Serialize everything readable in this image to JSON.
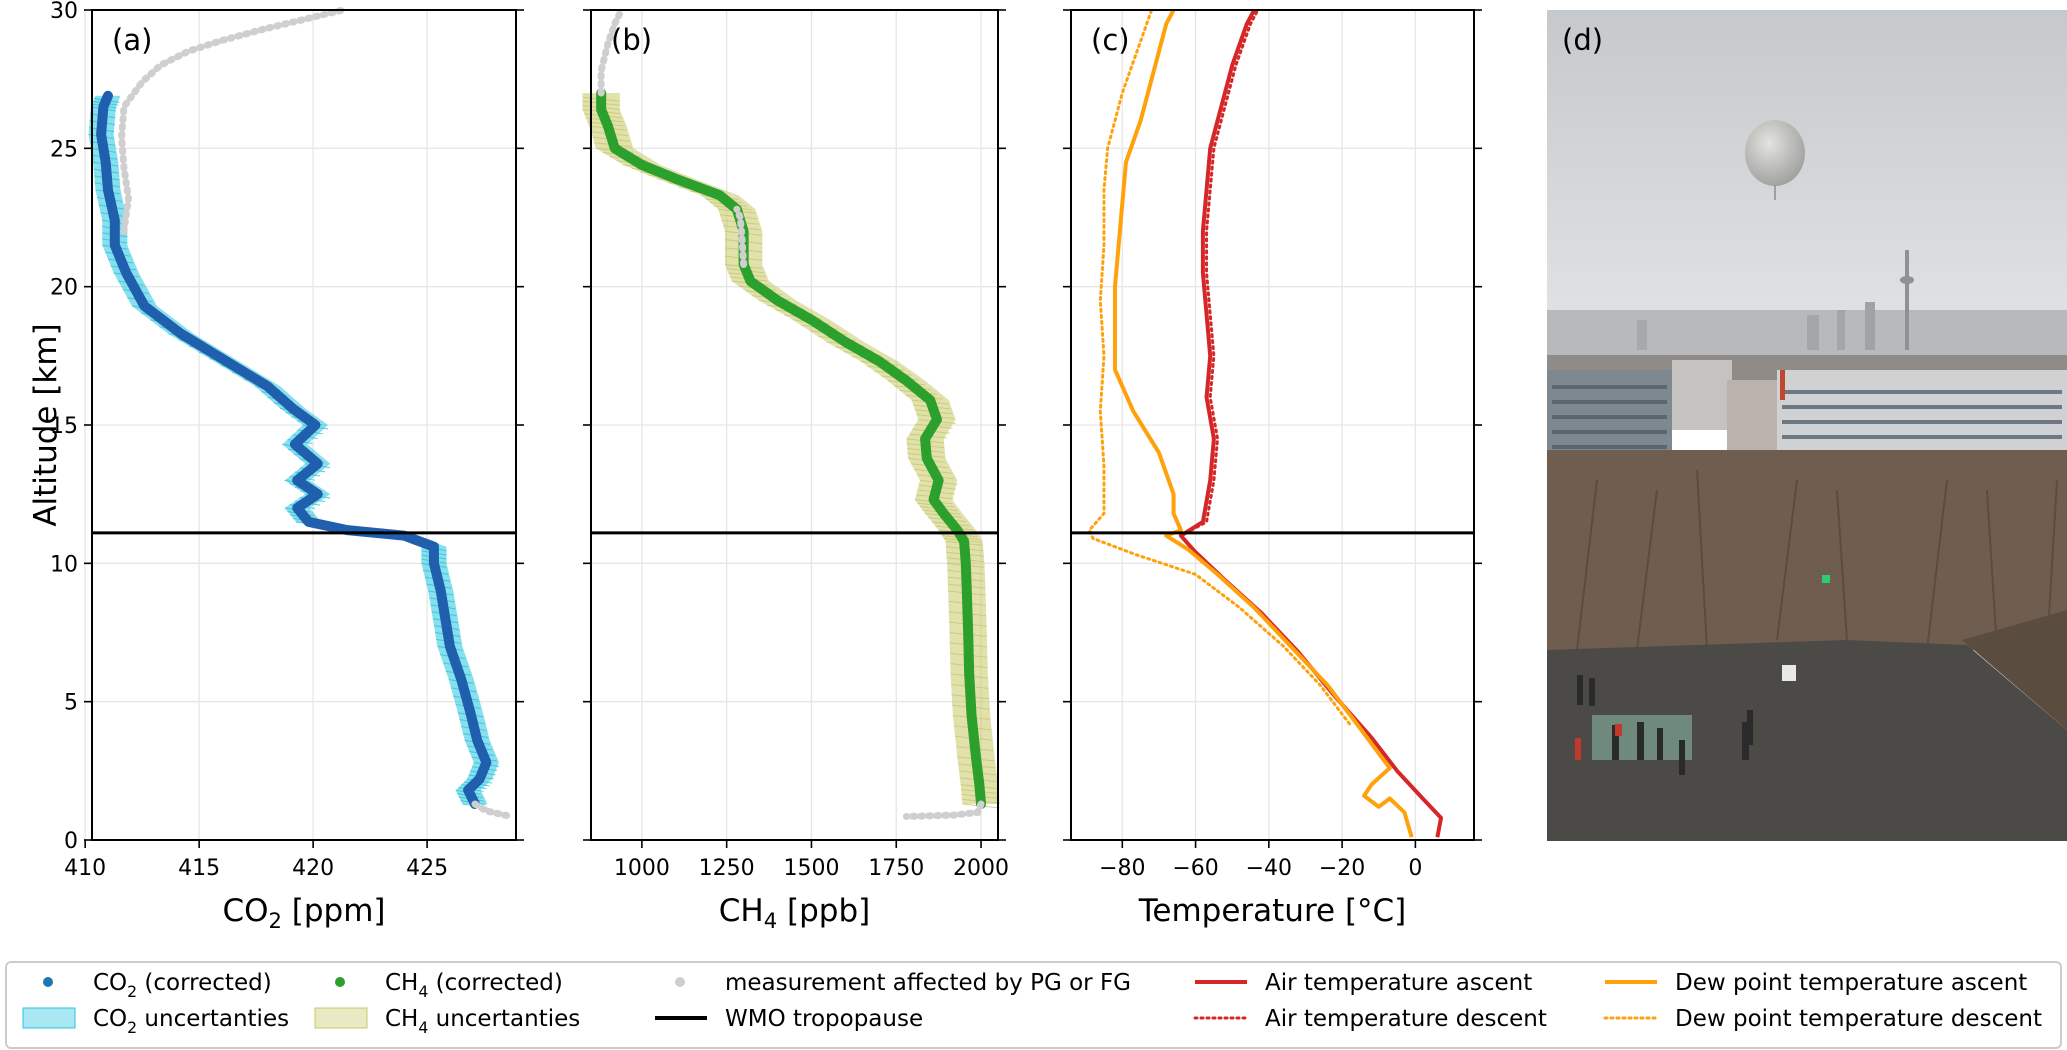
{
  "colors": {
    "co2": "#1f5fad",
    "co2_band": "#27c4df",
    "ch4": "#2ca02c",
    "ch4_band": "#c8c86a",
    "grey": "#cfcfcf",
    "air": "#d62728",
    "dew": "#ffa10a",
    "tropopause": "#000000",
    "grid": "#e6e6e6"
  },
  "chart_data": [
    {
      "panel_label": "(a)",
      "type": "line",
      "xlabel_main": "CO",
      "xlabel_sub": "2",
      "xlabel_tail": " [ppm]",
      "ylabel": "Altitude [km]",
      "xlim": [
        410.3,
        428.9
      ],
      "ylim": [
        0,
        30
      ],
      "xticks": [
        410,
        415,
        420,
        425
      ],
      "yticks": [
        0,
        5,
        10,
        15,
        20,
        25,
        30
      ],
      "tropopause_km": 11.1,
      "series": [
        {
          "name": "CO2 (corrected)",
          "role": "profile",
          "points": [
            [
              427.1,
              1.3
            ],
            [
              426.8,
              1.8
            ],
            [
              427.3,
              2.2
            ],
            [
              427.6,
              2.8
            ],
            [
              427.2,
              3.6
            ],
            [
              426.9,
              4.6
            ],
            [
              426.5,
              5.8
            ],
            [
              426.0,
              7.0
            ],
            [
              425.8,
              8.0
            ],
            [
              425.6,
              9.0
            ],
            [
              425.3,
              10.0
            ],
            [
              425.3,
              10.6
            ],
            [
              424.0,
              11.0
            ],
            [
              421.5,
              11.2
            ],
            [
              419.8,
              11.5
            ],
            [
              419.3,
              12.0
            ],
            [
              420.2,
              12.5
            ],
            [
              419.3,
              13.0
            ],
            [
              420.2,
              13.6
            ],
            [
              419.2,
              14.3
            ],
            [
              420.1,
              15.0
            ],
            [
              419.1,
              15.6
            ],
            [
              418.0,
              16.4
            ],
            [
              416.0,
              17.4
            ],
            [
              414.2,
              18.3
            ],
            [
              412.6,
              19.3
            ],
            [
              411.8,
              20.5
            ],
            [
              411.3,
              21.5
            ],
            [
              411.3,
              22.4
            ],
            [
              411.0,
              23.5
            ],
            [
              410.9,
              24.5
            ],
            [
              410.7,
              25.5
            ],
            [
              410.8,
              26.5
            ],
            [
              411.0,
              26.9
            ]
          ]
        },
        {
          "name": "CO2 uncertainties",
          "role": "band",
          "half_width": 0.55
        },
        {
          "name": "measurement affected by PG or FG",
          "role": "grey",
          "points": [
            [
              427.1,
              1.3
            ],
            [
              427.6,
              1.05
            ],
            [
              428.4,
              0.9
            ],
            [
              428.7,
              0.85
            ]
          ]
        },
        {
          "name": "measurement affected by PG or FG",
          "role": "grey",
          "points": [
            [
              411.7,
              22.0
            ],
            [
              411.9,
              23.2
            ],
            [
              411.7,
              24.3
            ],
            [
              411.6,
              25.4
            ],
            [
              411.7,
              26.5
            ],
            [
              412.5,
              27.4
            ],
            [
              413.3,
              28.0
            ],
            [
              414.5,
              28.5
            ],
            [
              416.0,
              28.9
            ],
            [
              417.8,
              29.3
            ],
            [
              419.8,
              29.7
            ],
            [
              421.3,
              30.0
            ]
          ]
        }
      ]
    },
    {
      "panel_label": "(b)",
      "type": "line",
      "xlabel_main": "CH",
      "xlabel_sub": "4",
      "xlabel_tail": " [ppb]",
      "xlim": [
        850,
        2050
      ],
      "ylim": [
        0,
        30
      ],
      "xticks": [
        1000,
        1250,
        1500,
        1750,
        2000
      ],
      "yticks": [
        0,
        5,
        10,
        15,
        20,
        25,
        30
      ],
      "tropopause_km": 11.1,
      "series": [
        {
          "name": "CH4 (corrected)",
          "role": "profile",
          "points": [
            [
              2000,
              1.3
            ],
            [
              1995,
              2.0
            ],
            [
              1985,
              3.0
            ],
            [
              1972,
              4.5
            ],
            [
              1965,
              6.0
            ],
            [
              1962,
              7.5
            ],
            [
              1958,
              9.0
            ],
            [
              1955,
              10.0
            ],
            [
              1950,
              10.8
            ],
            [
              1930,
              11.2
            ],
            [
              1890,
              11.8
            ],
            [
              1860,
              12.3
            ],
            [
              1875,
              13.0
            ],
            [
              1840,
              13.8
            ],
            [
              1835,
              14.5
            ],
            [
              1870,
              15.2
            ],
            [
              1850,
              15.9
            ],
            [
              1780,
              16.6
            ],
            [
              1700,
              17.3
            ],
            [
              1600,
              18.0
            ],
            [
              1500,
              18.8
            ],
            [
              1400,
              19.5
            ],
            [
              1320,
              20.2
            ],
            [
              1300,
              20.8
            ],
            [
              1300,
              22.0
            ],
            [
              1280,
              22.8
            ],
            [
              1230,
              23.3
            ],
            [
              1100,
              23.9
            ],
            [
              1000,
              24.4
            ],
            [
              920,
              25.0
            ],
            [
              900,
              25.8
            ],
            [
              880,
              26.4
            ],
            [
              880,
              27.0
            ]
          ]
        },
        {
          "name": "CH4 uncertainties",
          "role": "band",
          "half_width": 55
        },
        {
          "name": "measurement affected by PG or FG",
          "role": "grey",
          "points": [
            [
              2000,
              1.3
            ],
            [
              1990,
              1.0
            ],
            [
              1920,
              0.9
            ],
            [
              1780,
              0.85
            ]
          ]
        },
        {
          "name": "measurement affected by PG or FG",
          "role": "grey",
          "points": [
            [
              1300,
              20.8
            ],
            [
              1295,
              21.8
            ],
            [
              1290,
              22.5
            ],
            [
              1280,
              22.8
            ]
          ]
        },
        {
          "name": "measurement affected by PG or FG",
          "role": "grey",
          "points": [
            [
              880,
              27.0
            ],
            [
              880,
              27.8
            ],
            [
              900,
              28.8
            ],
            [
              920,
              29.5
            ],
            [
              940,
              30.0
            ]
          ]
        }
      ]
    },
    {
      "panel_label": "(c)",
      "type": "line",
      "xlabel": "Temperature [°C]",
      "xlim": [
        -94,
        16
      ],
      "ylim": [
        0,
        30
      ],
      "xticks": [
        -80,
        -60,
        -40,
        -20,
        0
      ],
      "yticks": [
        0,
        5,
        10,
        15,
        20,
        25,
        30
      ],
      "tropopause_km": 11.1,
      "series": [
        {
          "name": "Air temperature ascent",
          "role": "air",
          "dash": "solid",
          "points": [
            [
              6,
              0.1
            ],
            [
              7,
              0.8
            ],
            [
              2,
              1.5
            ],
            [
              -5,
              2.5
            ],
            [
              -12,
              3.7
            ],
            [
              -22,
              5.2
            ],
            [
              -32,
              6.8
            ],
            [
              -42,
              8.2
            ],
            [
              -52,
              9.4
            ],
            [
              -60,
              10.4
            ],
            [
              -64,
              11.0
            ],
            [
              -58,
              11.5
            ],
            [
              -56,
              13.0
            ],
            [
              -55,
              14.5
            ],
            [
              -57,
              16.0
            ],
            [
              -56,
              17.5
            ],
            [
              -57,
              19.0
            ],
            [
              -58,
              20.5
            ],
            [
              -58,
              22.0
            ],
            [
              -57,
              23.5
            ],
            [
              -56,
              25.0
            ],
            [
              -53,
              26.5
            ],
            [
              -50,
              28.0
            ],
            [
              -46,
              29.5
            ],
            [
              -44,
              30.0
            ]
          ]
        },
        {
          "name": "Air temperature descent",
          "role": "air",
          "dash": "dotted",
          "points": [
            [
              -64,
              11.0
            ],
            [
              -57,
              11.5
            ],
            [
              -55,
              13.0
            ],
            [
              -54,
              14.5
            ],
            [
              -56,
              16.0
            ],
            [
              -55,
              17.5
            ],
            [
              -56,
              19.0
            ],
            [
              -57,
              20.5
            ],
            [
              -57,
              22.0
            ],
            [
              -56,
              23.5
            ],
            [
              -55,
              25.0
            ],
            [
              -52,
              26.5
            ],
            [
              -49,
              28.0
            ],
            [
              -45,
              29.5
            ],
            [
              -43,
              30.0
            ]
          ]
        },
        {
          "name": "Dew point temperature ascent",
          "role": "dew",
          "dash": "solid",
          "points": [
            [
              -1,
              0.1
            ],
            [
              -3,
              1.0
            ],
            [
              -7,
              1.5
            ],
            [
              -10,
              1.2
            ],
            [
              -14,
              1.6
            ],
            [
              -12,
              2.0
            ],
            [
              -7,
              2.6
            ],
            [
              -16,
              4.2
            ],
            [
              -24,
              5.6
            ],
            [
              -34,
              7.0
            ],
            [
              -44,
              8.4
            ],
            [
              -54,
              9.6
            ],
            [
              -62,
              10.5
            ],
            [
              -68,
              11.0
            ],
            [
              -64,
              11.2
            ],
            [
              -66,
              11.8
            ],
            [
              -66,
              12.5
            ],
            [
              -70,
              14.0
            ],
            [
              -77,
              15.5
            ],
            [
              -82,
              17.0
            ],
            [
              -82,
              18.5
            ],
            [
              -82,
              20.0
            ],
            [
              -81,
              21.5
            ],
            [
              -80,
              23.0
            ],
            [
              -79,
              24.5
            ],
            [
              -75,
              26.0
            ],
            [
              -71,
              28.0
            ],
            [
              -68,
              29.5
            ],
            [
              -66,
              30.0
            ]
          ]
        },
        {
          "name": "Dew point temperature descent",
          "role": "dew",
          "dash": "dotted",
          "points": [
            [
              -18,
              4.2
            ],
            [
              -26,
              5.6
            ],
            [
              -36,
              7.0
            ],
            [
              -48,
              8.4
            ],
            [
              -60,
              9.6
            ],
            [
              -76,
              10.3
            ],
            [
              -88,
              10.9
            ],
            [
              -89,
              11.2
            ],
            [
              -85,
              11.8
            ],
            [
              -85,
              13.5
            ],
            [
              -86,
              15.5
            ],
            [
              -85,
              17.5
            ],
            [
              -86,
              19.5
            ],
            [
              -85,
              21.5
            ],
            [
              -85,
              23.5
            ],
            [
              -84,
              25.0
            ],
            [
              -80,
              27.0
            ],
            [
              -76,
              28.5
            ],
            [
              -72,
              30.0
            ]
          ]
        }
      ]
    }
  ],
  "photo": {
    "panel_label": "(d)"
  },
  "legend": [
    {
      "key": "co2",
      "label_main": "CO",
      "label_sub": "2",
      "label_tail": " (corrected)",
      "marker": "dot",
      "color": "#1f77b4"
    },
    {
      "key": "co2_unc",
      "label_main": "CO",
      "label_sub": "2",
      "label_tail": " uncertanties",
      "marker": "patch",
      "color": "#27c4df"
    },
    {
      "key": "ch4",
      "label_main": "CH",
      "label_sub": "4",
      "label_tail": " (corrected)",
      "marker": "dot",
      "color": "#2ca02c"
    },
    {
      "key": "ch4_unc",
      "label_main": "CH",
      "label_sub": "4",
      "label_tail": " uncertanties",
      "marker": "patch",
      "color": "#c8c86a"
    },
    {
      "key": "grey",
      "label_main": "measurement affected by PG or FG",
      "label_sub": "",
      "label_tail": "",
      "marker": "dot",
      "color": "#cfcfcf"
    },
    {
      "key": "trop",
      "label_main": "WMO tropopause",
      "label_sub": "",
      "label_tail": "",
      "marker": "line",
      "color": "#000000"
    },
    {
      "key": "air_a",
      "label_main": "Air temperature ascent",
      "label_sub": "",
      "label_tail": "",
      "marker": "line",
      "color": "#d62728"
    },
    {
      "key": "air_d",
      "label_main": "Air temperature descent",
      "label_sub": "",
      "label_tail": "",
      "marker": "dotline",
      "color": "#d62728"
    },
    {
      "key": "dew_a",
      "label_main": "Dew point temperature ascent",
      "label_sub": "",
      "label_tail": "",
      "marker": "line",
      "color": "#ffa10a"
    },
    {
      "key": "dew_d",
      "label_main": "Dew point temperature descent",
      "label_sub": "",
      "label_tail": "",
      "marker": "dotline",
      "color": "#ffa10a"
    }
  ]
}
